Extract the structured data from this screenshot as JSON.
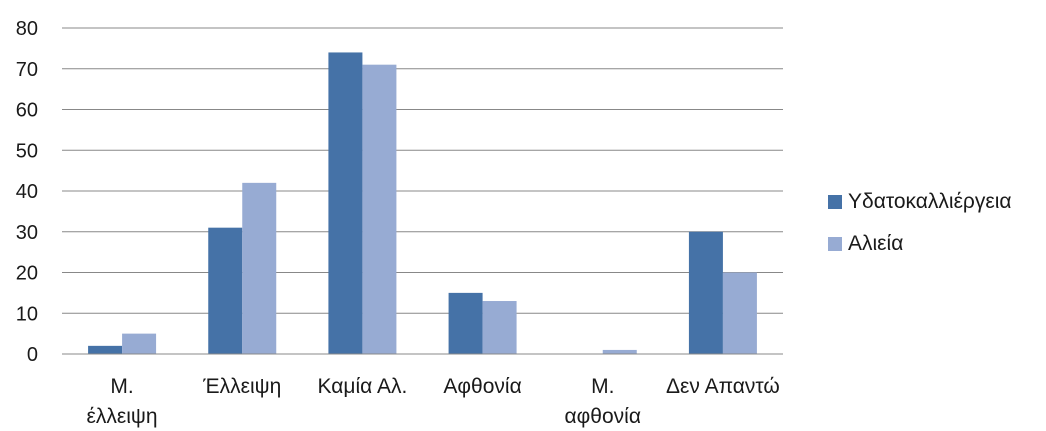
{
  "chart_data": {
    "type": "bar",
    "categories": [
      [
        "Μ.",
        "έλλειψη"
      ],
      [
        "Έλλειψη"
      ],
      [
        "Καμία Αλ."
      ],
      [
        "Αφθονία"
      ],
      [
        "Μ.",
        "αφθονία"
      ],
      [
        "Δεν Απαντώ"
      ]
    ],
    "series": [
      {
        "name": "Υδατοκαλλιέργεια",
        "color": "#4572A7",
        "values": [
          2,
          31,
          74,
          15,
          0,
          30
        ]
      },
      {
        "name": "Αλιεία",
        "color": "#97ABD3",
        "values": [
          5,
          42,
          71,
          13,
          1,
          20
        ]
      }
    ],
    "ylim": [
      0,
      80
    ],
    "yticks": [
      0,
      10,
      20,
      30,
      40,
      50,
      60,
      70,
      80
    ],
    "grid": true,
    "legend": "right"
  }
}
